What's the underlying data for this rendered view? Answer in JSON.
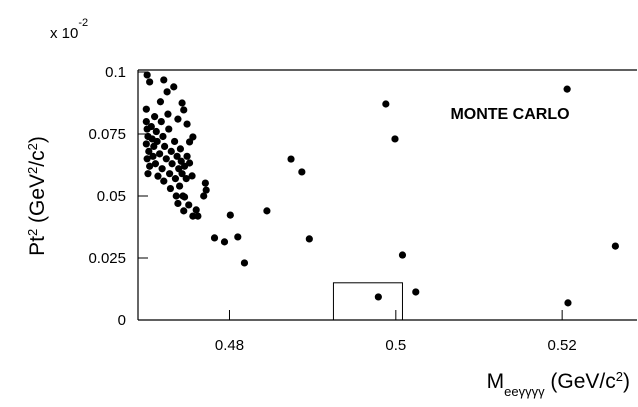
{
  "chart_data": {
    "type": "scatter",
    "multiplier": [
      "x 10",
      "-2"
    ],
    "ylabel": [
      "Pt",
      "2",
      " (GeV",
      "2",
      "/c",
      "2",
      ")"
    ],
    "xlabel": [
      "M",
      "eeγγγγ",
      " (GeV/c",
      "2",
      ")"
    ],
    "annotation": "MONTE CARLO",
    "color": "#000000",
    "xlim": [
      0.469,
      0.529
    ],
    "ylim": [
      0,
      0.1
    ],
    "xticks": [
      0.48,
      0.5,
      0.52
    ],
    "yticks": [
      0,
      0.025,
      0.05,
      0.075,
      0.1
    ],
    "box": {
      "x": [
        0.4925,
        0.5008
      ],
      "y": [
        0,
        0.015
      ]
    },
    "x": [
      0.4988,
      0.4999,
      0.5008,
      0.4979,
      0.5024,
      0.5206,
      0.5207,
      0.5264,
      0.4874,
      0.4887,
      0.4896,
      0.4845,
      0.481,
      0.4818,
      0.4801,
      0.4794,
      0.4782,
      0.4771,
      0.4772,
      0.4769,
      0.476,
      0.4756,
      0.4762,
      0.4751,
      0.4746,
      0.4756,
      0.4752,
      0.4755,
      0.4752,
      0.4749,
      0.4745,
      0.4743,
      0.4721,
      0.4701,
      0.4704,
      0.47,
      0.47,
      0.4701,
      0.4702,
      0.47,
      0.4703,
      0.4701,
      0.4704,
      0.4702,
      0.4706,
      0.4707,
      0.4709,
      0.4708,
      0.471,
      0.4712,
      0.4713,
      0.4711,
      0.4714,
      0.4716,
      0.4717,
      0.4718,
      0.472,
      0.4719,
      0.4721,
      0.4722,
      0.4724,
      0.4725,
      0.4726,
      0.4727,
      0.4728,
      0.4729,
      0.473,
      0.4731,
      0.4733,
      0.4734,
      0.4735,
      0.4736,
      0.4737,
      0.4738,
      0.4739,
      0.474,
      0.4741,
      0.4742,
      0.4743,
      0.4744,
      0.4746,
      0.4748,
      0.4749,
      0.4738,
      0.4745
    ],
    "values": [
      0.0871,
      0.073,
      0.0262,
      0.0093,
      0.0113,
      0.0931,
      0.0069,
      0.0298,
      0.0649,
      0.0597,
      0.0327,
      0.044,
      0.0335,
      0.023,
      0.0423,
      0.0315,
      0.0331,
      0.0552,
      0.0524,
      0.05,
      0.0444,
      0.0419,
      0.0419,
      0.0464,
      0.0496,
      0.0738,
      0.0718,
      0.0581,
      0.0633,
      0.079,
      0.0847,
      0.0875,
      0.0968,
      0.0988,
      0.096,
      0.085,
      0.08,
      0.077,
      0.074,
      0.071,
      0.068,
      0.065,
      0.062,
      0.059,
      0.078,
      0.073,
      0.07,
      0.066,
      0.082,
      0.076,
      0.072,
      0.063,
      0.058,
      0.067,
      0.088,
      0.08,
      0.074,
      0.061,
      0.056,
      0.07,
      0.065,
      0.092,
      0.083,
      0.077,
      0.059,
      0.053,
      0.068,
      0.063,
      0.094,
      0.072,
      0.057,
      0.05,
      0.066,
      0.081,
      0.061,
      0.054,
      0.069,
      0.064,
      0.059,
      0.05,
      0.062,
      0.057,
      0.066,
      0.047,
      0.044
    ]
  }
}
